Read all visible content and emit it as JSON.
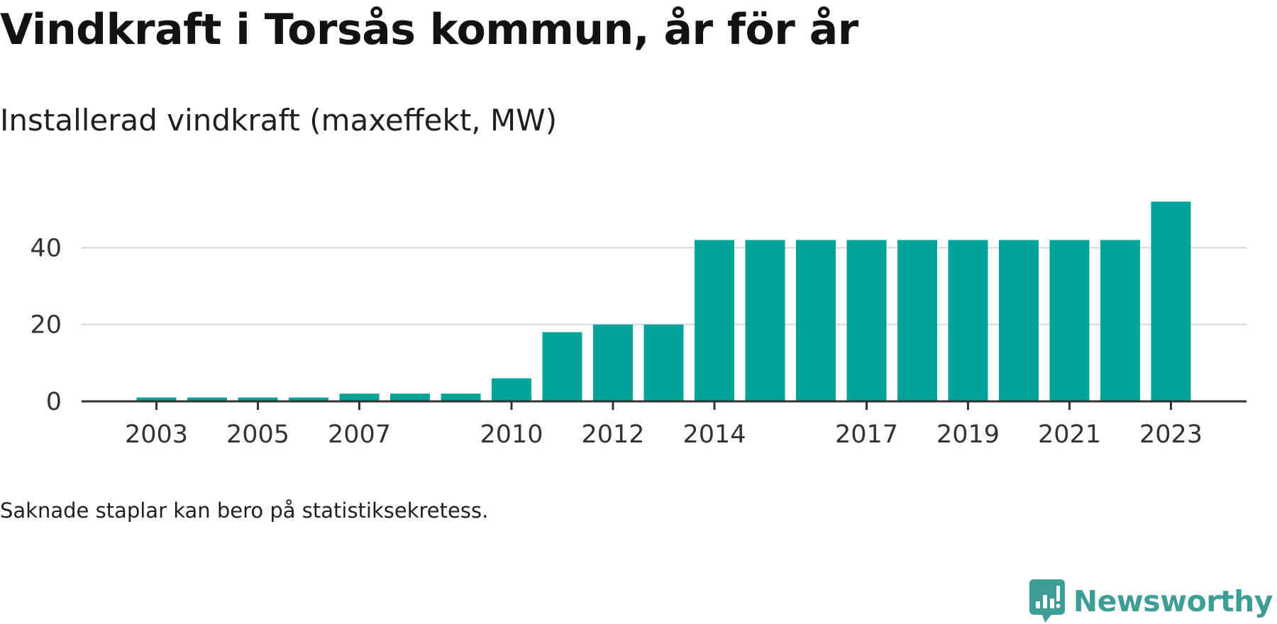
{
  "header": {
    "title": "Vindkraft i Torsås kommun, år för år",
    "subtitle": "Installerad vindkraft (maxeffekt, MW)"
  },
  "footnote": "Saknade staplar kan bero på statistiksekretess.",
  "brand": {
    "name": "Newsworthy",
    "icon": "newsworthy-logo-icon",
    "color": "#3e9e97"
  },
  "chart_data": {
    "type": "bar",
    "color": "#00a39a",
    "categories": [
      "2002",
      "2003",
      "2004",
      "2005",
      "2006",
      "2007",
      "2008",
      "2009",
      "2010",
      "2011",
      "2012",
      "2013",
      "2014",
      "2015",
      "2016",
      "2017",
      "2018",
      "2019",
      "2020",
      "2021",
      "2022",
      "2023"
    ],
    "values": [
      null,
      1,
      1,
      1,
      1,
      2,
      2,
      2,
      6,
      18,
      20,
      20,
      42,
      42,
      42,
      42,
      42,
      42,
      42,
      42,
      42,
      52
    ],
    "x_tick_labels": [
      "2003",
      "2005",
      "2007",
      "2010",
      "2012",
      "2014",
      "2017",
      "2019",
      "2021",
      "2023"
    ],
    "y_ticks": [
      "0",
      "20",
      "40"
    ],
    "ylim": [
      0,
      56
    ],
    "grid": "horizontal",
    "legend": "none"
  }
}
